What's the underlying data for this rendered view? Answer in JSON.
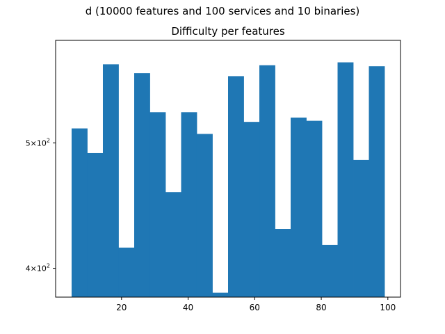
{
  "figure": {
    "suptitle": "d (10000 features and 100 services and 10 binaries)"
  },
  "chart_data": {
    "type": "bar",
    "title": "Difficulty per features",
    "xlabel": "",
    "ylabel": "",
    "yscale": "log",
    "xlim": [
      0.2,
      103.8
    ],
    "ylim": [
      380,
      600
    ],
    "bin_edges": [
      5.0,
      9.7,
      14.4,
      19.1,
      23.8,
      28.5,
      33.2,
      37.9,
      42.6,
      47.3,
      52.0,
      56.7,
      61.4,
      66.1,
      70.8,
      75.5,
      80.2,
      84.9,
      89.6,
      94.3,
      99.0
    ],
    "values": [
      513,
      491,
      575,
      415,
      566,
      528,
      458,
      528,
      508,
      383,
      563,
      519,
      574,
      429,
      523,
      520,
      417,
      577,
      485,
      573
    ],
    "x_ticks": [
      20,
      40,
      60,
      80,
      100
    ],
    "x_tick_labels": [
      "20",
      "40",
      "60",
      "80",
      "100"
    ],
    "y_ticks": [
      {
        "value": 400,
        "mantissa": "4",
        "base": "10",
        "exponent": "2"
      },
      {
        "value": 500,
        "mantissa": "5",
        "base": "10",
        "exponent": "2"
      }
    ],
    "bar_color": "#1f77b4",
    "grid": false
  }
}
